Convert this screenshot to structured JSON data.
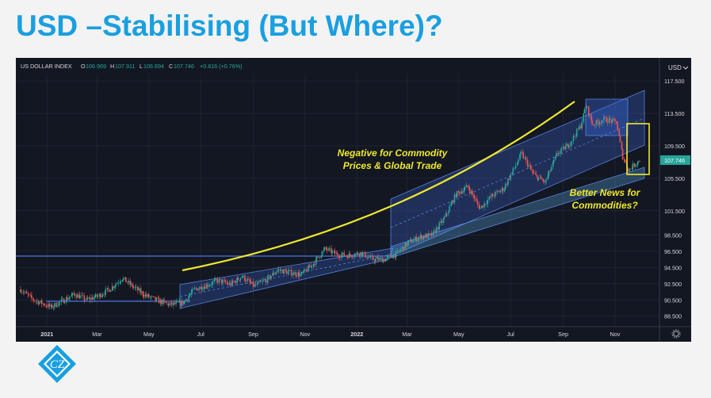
{
  "title": "USD –Stabilising (But Where)?",
  "chart_data": {
    "type": "candlestick",
    "instrument": "US DOLLAR INDEX",
    "ohlc_header": {
      "o_label": "O",
      "o": "106.969",
      "h_label": "H",
      "h": "107.911",
      "l_label": "L",
      "l": "106.894",
      "c_label": "C",
      "c": "107.746",
      "change": "+0.816 (+0.76%)"
    },
    "currency": "USD",
    "y_ticks": [
      "117.500",
      "113.500",
      "109.500",
      "105.500",
      "101.500",
      "98.500",
      "96.500",
      "94.500",
      "92.500",
      "90.500",
      "88.500"
    ],
    "last_price": "107.746",
    "x_ticks": [
      "2021",
      "Mar",
      "May",
      "Jul",
      "Sep",
      "Nov",
      "2022",
      "Mar",
      "May",
      "Jul",
      "Sep",
      "Nov"
    ],
    "price_path": [
      [
        "2020-12-01",
        91.8
      ],
      [
        "2020-12-15",
        90.6
      ],
      [
        "2021-01-06",
        89.6
      ],
      [
        "2021-01-20",
        90.4
      ],
      [
        "2021-02-03",
        91.2
      ],
      [
        "2021-02-17",
        90.5
      ],
      [
        "2021-03-03",
        91.0
      ],
      [
        "2021-03-17",
        91.9
      ],
      [
        "2021-03-31",
        93.2
      ],
      [
        "2021-04-14",
        92.0
      ],
      [
        "2021-04-28",
        91.0
      ],
      [
        "2021-05-12",
        90.4
      ],
      [
        "2021-05-26",
        89.9
      ],
      [
        "2021-06-10",
        90.1
      ],
      [
        "2021-06-24",
        91.8
      ],
      [
        "2021-07-08",
        92.3
      ],
      [
        "2021-07-22",
        92.9
      ],
      [
        "2021-08-05",
        92.4
      ],
      [
        "2021-08-19",
        93.4
      ],
      [
        "2021-09-02",
        92.2
      ],
      [
        "2021-09-16",
        92.9
      ],
      [
        "2021-09-30",
        94.2
      ],
      [
        "2021-10-14",
        93.9
      ],
      [
        "2021-10-28",
        93.6
      ],
      [
        "2021-11-11",
        95.0
      ],
      [
        "2021-11-25",
        96.8
      ],
      [
        "2021-12-09",
        96.1
      ],
      [
        "2021-12-23",
        96.0
      ],
      [
        "2022-01-06",
        96.3
      ],
      [
        "2022-01-20",
        95.5
      ],
      [
        "2022-02-03",
        95.5
      ],
      [
        "2022-02-17",
        96.2
      ],
      [
        "2022-03-03",
        97.6
      ],
      [
        "2022-03-17",
        98.3
      ],
      [
        "2022-03-31",
        98.5
      ],
      [
        "2022-04-14",
        100.5
      ],
      [
        "2022-04-28",
        103.5
      ],
      [
        "2022-05-12",
        104.5
      ],
      [
        "2022-05-26",
        101.8
      ],
      [
        "2022-06-09",
        103.3
      ],
      [
        "2022-06-23",
        104.2
      ],
      [
        "2022-07-07",
        107.0
      ],
      [
        "2022-07-14",
        108.6
      ],
      [
        "2022-07-28",
        106.0
      ],
      [
        "2022-08-11",
        105.0
      ],
      [
        "2022-08-25",
        108.5
      ],
      [
        "2022-09-08",
        109.7
      ],
      [
        "2022-09-22",
        112.0
      ],
      [
        "2022-09-28",
        114.5
      ],
      [
        "2022-10-06",
        112.1
      ],
      [
        "2022-10-20",
        112.8
      ],
      [
        "2022-11-03",
        112.4
      ],
      [
        "2022-11-10",
        108.3
      ],
      [
        "2022-11-17",
        106.5
      ],
      [
        "2022-11-30",
        107.746
      ]
    ],
    "annotations": [
      {
        "text": "Negative for Commodity Prices & Global Trade",
        "lines": [
          "Negative for Commodity",
          "Prices & Global Trade"
        ]
      },
      {
        "text": "Better News for Commodities?",
        "lines": [
          "Better News for",
          "Commodities?"
        ]
      }
    ],
    "colors": {
      "background": "#131722",
      "up": "#26a69a",
      "down": "#ef5350",
      "annotation": "#f0e82f",
      "channel_fill": "#3a67d6",
      "channel_line": "#5d8cf0",
      "range_line": "#4a74e0",
      "ohlc_values": "#26a69a",
      "axis_text": "#d7d7d7"
    }
  },
  "logo": {
    "text": "CZ",
    "color": "#1a9fe0"
  }
}
